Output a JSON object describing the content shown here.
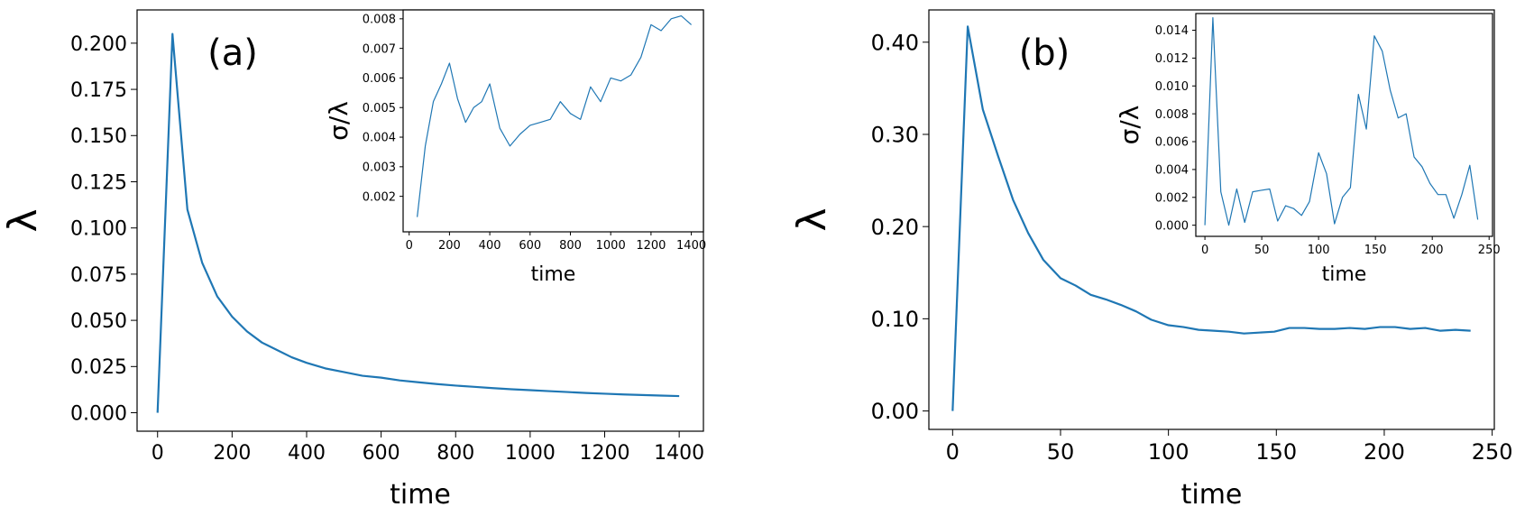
{
  "chart_data": [
    {
      "type": "line",
      "panel_label": "(a)",
      "xlabel": "time",
      "ylabel": "λ",
      "xlim": [
        -55,
        1465
      ],
      "ylim": [
        -0.01,
        0.218
      ],
      "xticks": [
        0,
        200,
        400,
        600,
        800,
        1000,
        1200,
        1400
      ],
      "yticks": [
        0.0,
        0.025,
        0.05,
        0.075,
        0.1,
        0.125,
        0.15,
        0.175,
        0.2
      ],
      "yticklabels": [
        "0.000",
        "0.025",
        "0.050",
        "0.075",
        "0.100",
        "0.125",
        "0.150",
        "0.175",
        "0.200"
      ],
      "grid": false,
      "color": "#1f77b4",
      "x": [
        0,
        40,
        80,
        120,
        160,
        200,
        240,
        280,
        320,
        360,
        400,
        450,
        500,
        550,
        600,
        650,
        700,
        750,
        800,
        850,
        900,
        950,
        1000,
        1050,
        1100,
        1150,
        1200,
        1250,
        1300,
        1350,
        1400
      ],
      "y": [
        0.0,
        0.205,
        0.11,
        0.081,
        0.063,
        0.052,
        0.044,
        0.038,
        0.034,
        0.03,
        0.027,
        0.024,
        0.022,
        0.02,
        0.019,
        0.0175,
        0.0165,
        0.0155,
        0.0147,
        0.014,
        0.0133,
        0.0127,
        0.0122,
        0.0117,
        0.0112,
        0.0107,
        0.0103,
        0.0099,
        0.0096,
        0.0093,
        0.009
      ],
      "inset": {
        "type": "line",
        "xlabel": "time",
        "ylabel": "σ/λ",
        "xlim": [
          -30,
          1460
        ],
        "ylim": [
          0.0008,
          0.0083
        ],
        "xticks": [
          0,
          200,
          400,
          600,
          800,
          1000,
          1200,
          1400
        ],
        "yticks": [
          0.002,
          0.003,
          0.004,
          0.005,
          0.006,
          0.007,
          0.008
        ],
        "yticklabels": [
          "0.002",
          "0.003",
          "0.004",
          "0.005",
          "0.006",
          "0.007",
          "0.008"
        ],
        "color": "#1f77b4",
        "x": [
          40,
          80,
          120,
          160,
          200,
          240,
          280,
          320,
          360,
          400,
          450,
          500,
          550,
          600,
          650,
          700,
          750,
          800,
          850,
          900,
          950,
          1000,
          1050,
          1100,
          1150,
          1200,
          1250,
          1300,
          1350,
          1400
        ],
        "y": [
          0.0013,
          0.0037,
          0.0052,
          0.0058,
          0.0065,
          0.0053,
          0.0045,
          0.005,
          0.0052,
          0.0058,
          0.0043,
          0.0037,
          0.0041,
          0.0044,
          0.0045,
          0.0046,
          0.0052,
          0.0048,
          0.0046,
          0.0057,
          0.0052,
          0.006,
          0.0059,
          0.0061,
          0.0067,
          0.0078,
          0.0076,
          0.008,
          0.0081,
          0.0078
        ]
      }
    },
    {
      "type": "line",
      "panel_label": "(b)",
      "xlabel": "time",
      "ylabel": "λ",
      "xlim": [
        -11,
        251
      ],
      "ylim": [
        -0.02,
        0.435
      ],
      "xticks": [
        0,
        50,
        100,
        150,
        200,
        250
      ],
      "yticks": [
        0.0,
        0.1,
        0.2,
        0.3,
        0.4
      ],
      "yticklabels": [
        "0.00",
        "0.10",
        "0.20",
        "0.30",
        "0.40"
      ],
      "grid": false,
      "color": "#1f77b4",
      "x": [
        0,
        7,
        14,
        21,
        28,
        35,
        42,
        50,
        57,
        64,
        71,
        78,
        85,
        92,
        100,
        107,
        114,
        121,
        128,
        135,
        142,
        149,
        156,
        163,
        170,
        177,
        184,
        191,
        198,
        205,
        212,
        219,
        226,
        233,
        240
      ],
      "y": [
        0.0,
        0.417,
        0.327,
        0.277,
        0.229,
        0.193,
        0.164,
        0.144,
        0.136,
        0.126,
        0.121,
        0.115,
        0.108,
        0.099,
        0.093,
        0.091,
        0.088,
        0.087,
        0.086,
        0.084,
        0.085,
        0.086,
        0.09,
        0.09,
        0.089,
        0.089,
        0.09,
        0.089,
        0.091,
        0.091,
        0.089,
        0.09,
        0.087,
        0.088,
        0.087
      ],
      "inset": {
        "type": "line",
        "xlabel": "time",
        "ylabel": "σ/λ",
        "xlim": [
          -8,
          253
        ],
        "ylim": [
          -0.0008,
          0.0152
        ],
        "xticks": [
          0,
          50,
          100,
          150,
          200,
          250
        ],
        "yticks": [
          0.0,
          0.002,
          0.004,
          0.006,
          0.008,
          0.01,
          0.012,
          0.014
        ],
        "yticklabels": [
          "0.000",
          "0.002",
          "0.004",
          "0.006",
          "0.008",
          "0.010",
          "0.012",
          "0.014"
        ],
        "color": "#1f77b4",
        "x": [
          0,
          7,
          14,
          21,
          28,
          35,
          42,
          49,
          57,
          64,
          71,
          78,
          85,
          92,
          100,
          107,
          114,
          121,
          128,
          135,
          142,
          149,
          156,
          163,
          170,
          177,
          184,
          191,
          198,
          205,
          212,
          219,
          226,
          233,
          240
        ],
        "y": [
          0.0,
          0.0149,
          0.0024,
          0.0,
          0.0026,
          0.0002,
          0.0024,
          0.0025,
          0.0026,
          0.0003,
          0.0014,
          0.0012,
          0.0007,
          0.0017,
          0.0052,
          0.0037,
          0.0001,
          0.002,
          0.0027,
          0.0094,
          0.0069,
          0.0136,
          0.0125,
          0.0097,
          0.0077,
          0.008,
          0.0049,
          0.0042,
          0.003,
          0.0022,
          0.0022,
          0.0005,
          0.0022,
          0.0043,
          0.0004
        ]
      }
    }
  ]
}
